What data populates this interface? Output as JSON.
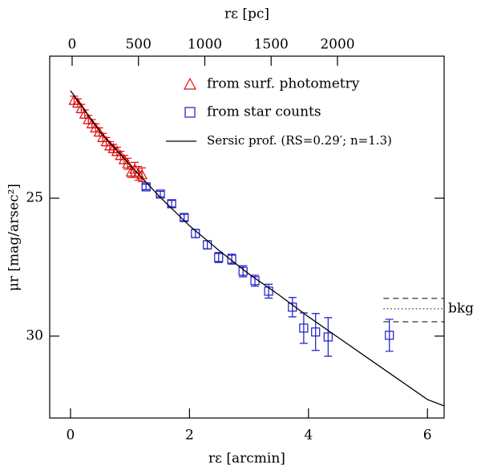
{
  "chart_data": {
    "type": "scatter",
    "xlabel": "rε [arcmin]",
    "x2label": "rε [pc]",
    "ylabel": "μr [mag/arsec²]",
    "xlim": [
      -0.35,
      6.28
    ],
    "xticks": [
      0,
      2,
      4,
      6
    ],
    "x2lim": [
      -169,
      2804
    ],
    "x2ticks": [
      0,
      500,
      1000,
      1500,
      2000
    ],
    "ylim": [
      32.97,
      19.85
    ],
    "yticks": [
      25,
      30
    ],
    "series": [
      {
        "name": "from surf. photometry",
        "marker": "triangle",
        "color": "#e01010",
        "x": [
          0.06,
          0.12,
          0.18,
          0.24,
          0.3,
          0.36,
          0.42,
          0.48,
          0.54,
          0.6,
          0.66,
          0.72,
          0.78,
          0.84,
          0.9,
          0.96,
          1.02,
          1.08,
          1.14,
          1.2
        ],
        "values": [
          21.45,
          21.55,
          21.75,
          21.95,
          22.15,
          22.3,
          22.45,
          22.6,
          22.8,
          22.95,
          23.1,
          23.2,
          23.3,
          23.45,
          23.6,
          23.75,
          24.05,
          23.95,
          24.1,
          24.15
        ],
        "errors": [
          0.15,
          0.15,
          0.15,
          0.15,
          0.15,
          0.15,
          0.15,
          0.15,
          0.15,
          0.15,
          0.15,
          0.15,
          0.15,
          0.15,
          0.15,
          0.2,
          0.2,
          0.25,
          0.25,
          0.25
        ]
      },
      {
        "name": "from star counts",
        "marker": "square",
        "color": "#1a1ac8",
        "x": [
          1.27,
          1.51,
          1.7,
          1.91,
          2.1,
          2.3,
          2.49,
          2.71,
          2.9,
          3.1,
          3.33,
          3.73,
          3.92,
          4.12,
          4.33,
          5.36
        ],
        "values": [
          24.59,
          24.85,
          25.2,
          25.7,
          26.28,
          26.69,
          27.15,
          27.21,
          27.65,
          27.99,
          28.37,
          28.95,
          29.71,
          29.85,
          30.03,
          29.97
        ],
        "errors": [
          0.1,
          0.1,
          0.12,
          0.12,
          0.15,
          0.15,
          0.18,
          0.18,
          0.2,
          0.2,
          0.25,
          0.35,
          0.55,
          0.67,
          0.7,
          0.58
        ]
      },
      {
        "name": "Sersic prof. (RS=0.29′; n=1.3)",
        "marker": "line",
        "color": "#000000",
        "x": [
          0,
          0.5,
          1,
          1.5,
          2,
          2.5,
          3,
          3.5,
          4,
          4.5,
          5,
          5.5,
          6,
          6.28
        ],
        "values": [
          21.1,
          22.6,
          23.8,
          24.95,
          26.0,
          26.9,
          27.75,
          28.5,
          29.3,
          30.05,
          30.8,
          31.55,
          32.3,
          32.53
        ]
      }
    ],
    "background": {
      "label": "bkg",
      "x_start": 5.26,
      "values": [
        28.63,
        29.01,
        29.48
      ]
    }
  }
}
